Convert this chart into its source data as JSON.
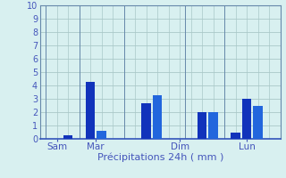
{
  "xlabel": "Précipitations 24h ( mm )",
  "background_color": "#d8f0f0",
  "grid_color": "#aac8c8",
  "bar_data": [
    {
      "x": 2,
      "height": 0.3,
      "color": "#1133bb"
    },
    {
      "x": 4,
      "height": 4.3,
      "color": "#1133bb"
    },
    {
      "x": 5,
      "height": 0.6,
      "color": "#2266dd"
    },
    {
      "x": 9,
      "height": 2.7,
      "color": "#1133bb"
    },
    {
      "x": 10,
      "height": 3.3,
      "color": "#2266dd"
    },
    {
      "x": 14,
      "height": 2.0,
      "color": "#1133bb"
    },
    {
      "x": 15,
      "height": 2.0,
      "color": "#2266dd"
    },
    {
      "x": 17,
      "height": 0.5,
      "color": "#1133bb"
    },
    {
      "x": 18,
      "height": 3.0,
      "color": "#1133bb"
    },
    {
      "x": 19,
      "height": 2.5,
      "color": "#2266dd"
    }
  ],
  "day_labels": [
    {
      "x": 1,
      "label": "Sam"
    },
    {
      "x": 4.5,
      "label": "Mar"
    },
    {
      "x": 12,
      "label": "Dim"
    },
    {
      "x": 18,
      "label": "Lun"
    }
  ],
  "day_lines_x": [
    0,
    3,
    7,
    12.5,
    16,
    21
  ],
  "xlim": [
    -0.5,
    21
  ],
  "ylim": [
    0,
    10
  ],
  "yticks": [
    0,
    1,
    2,
    3,
    4,
    5,
    6,
    7,
    8,
    9,
    10
  ],
  "bar_width": 0.85,
  "tick_color": "#4455bb",
  "label_color": "#4455bb",
  "spine_color": "#6688aa",
  "xlabel_fontsize": 8,
  "ytick_fontsize": 7,
  "xtick_fontsize": 7.5
}
